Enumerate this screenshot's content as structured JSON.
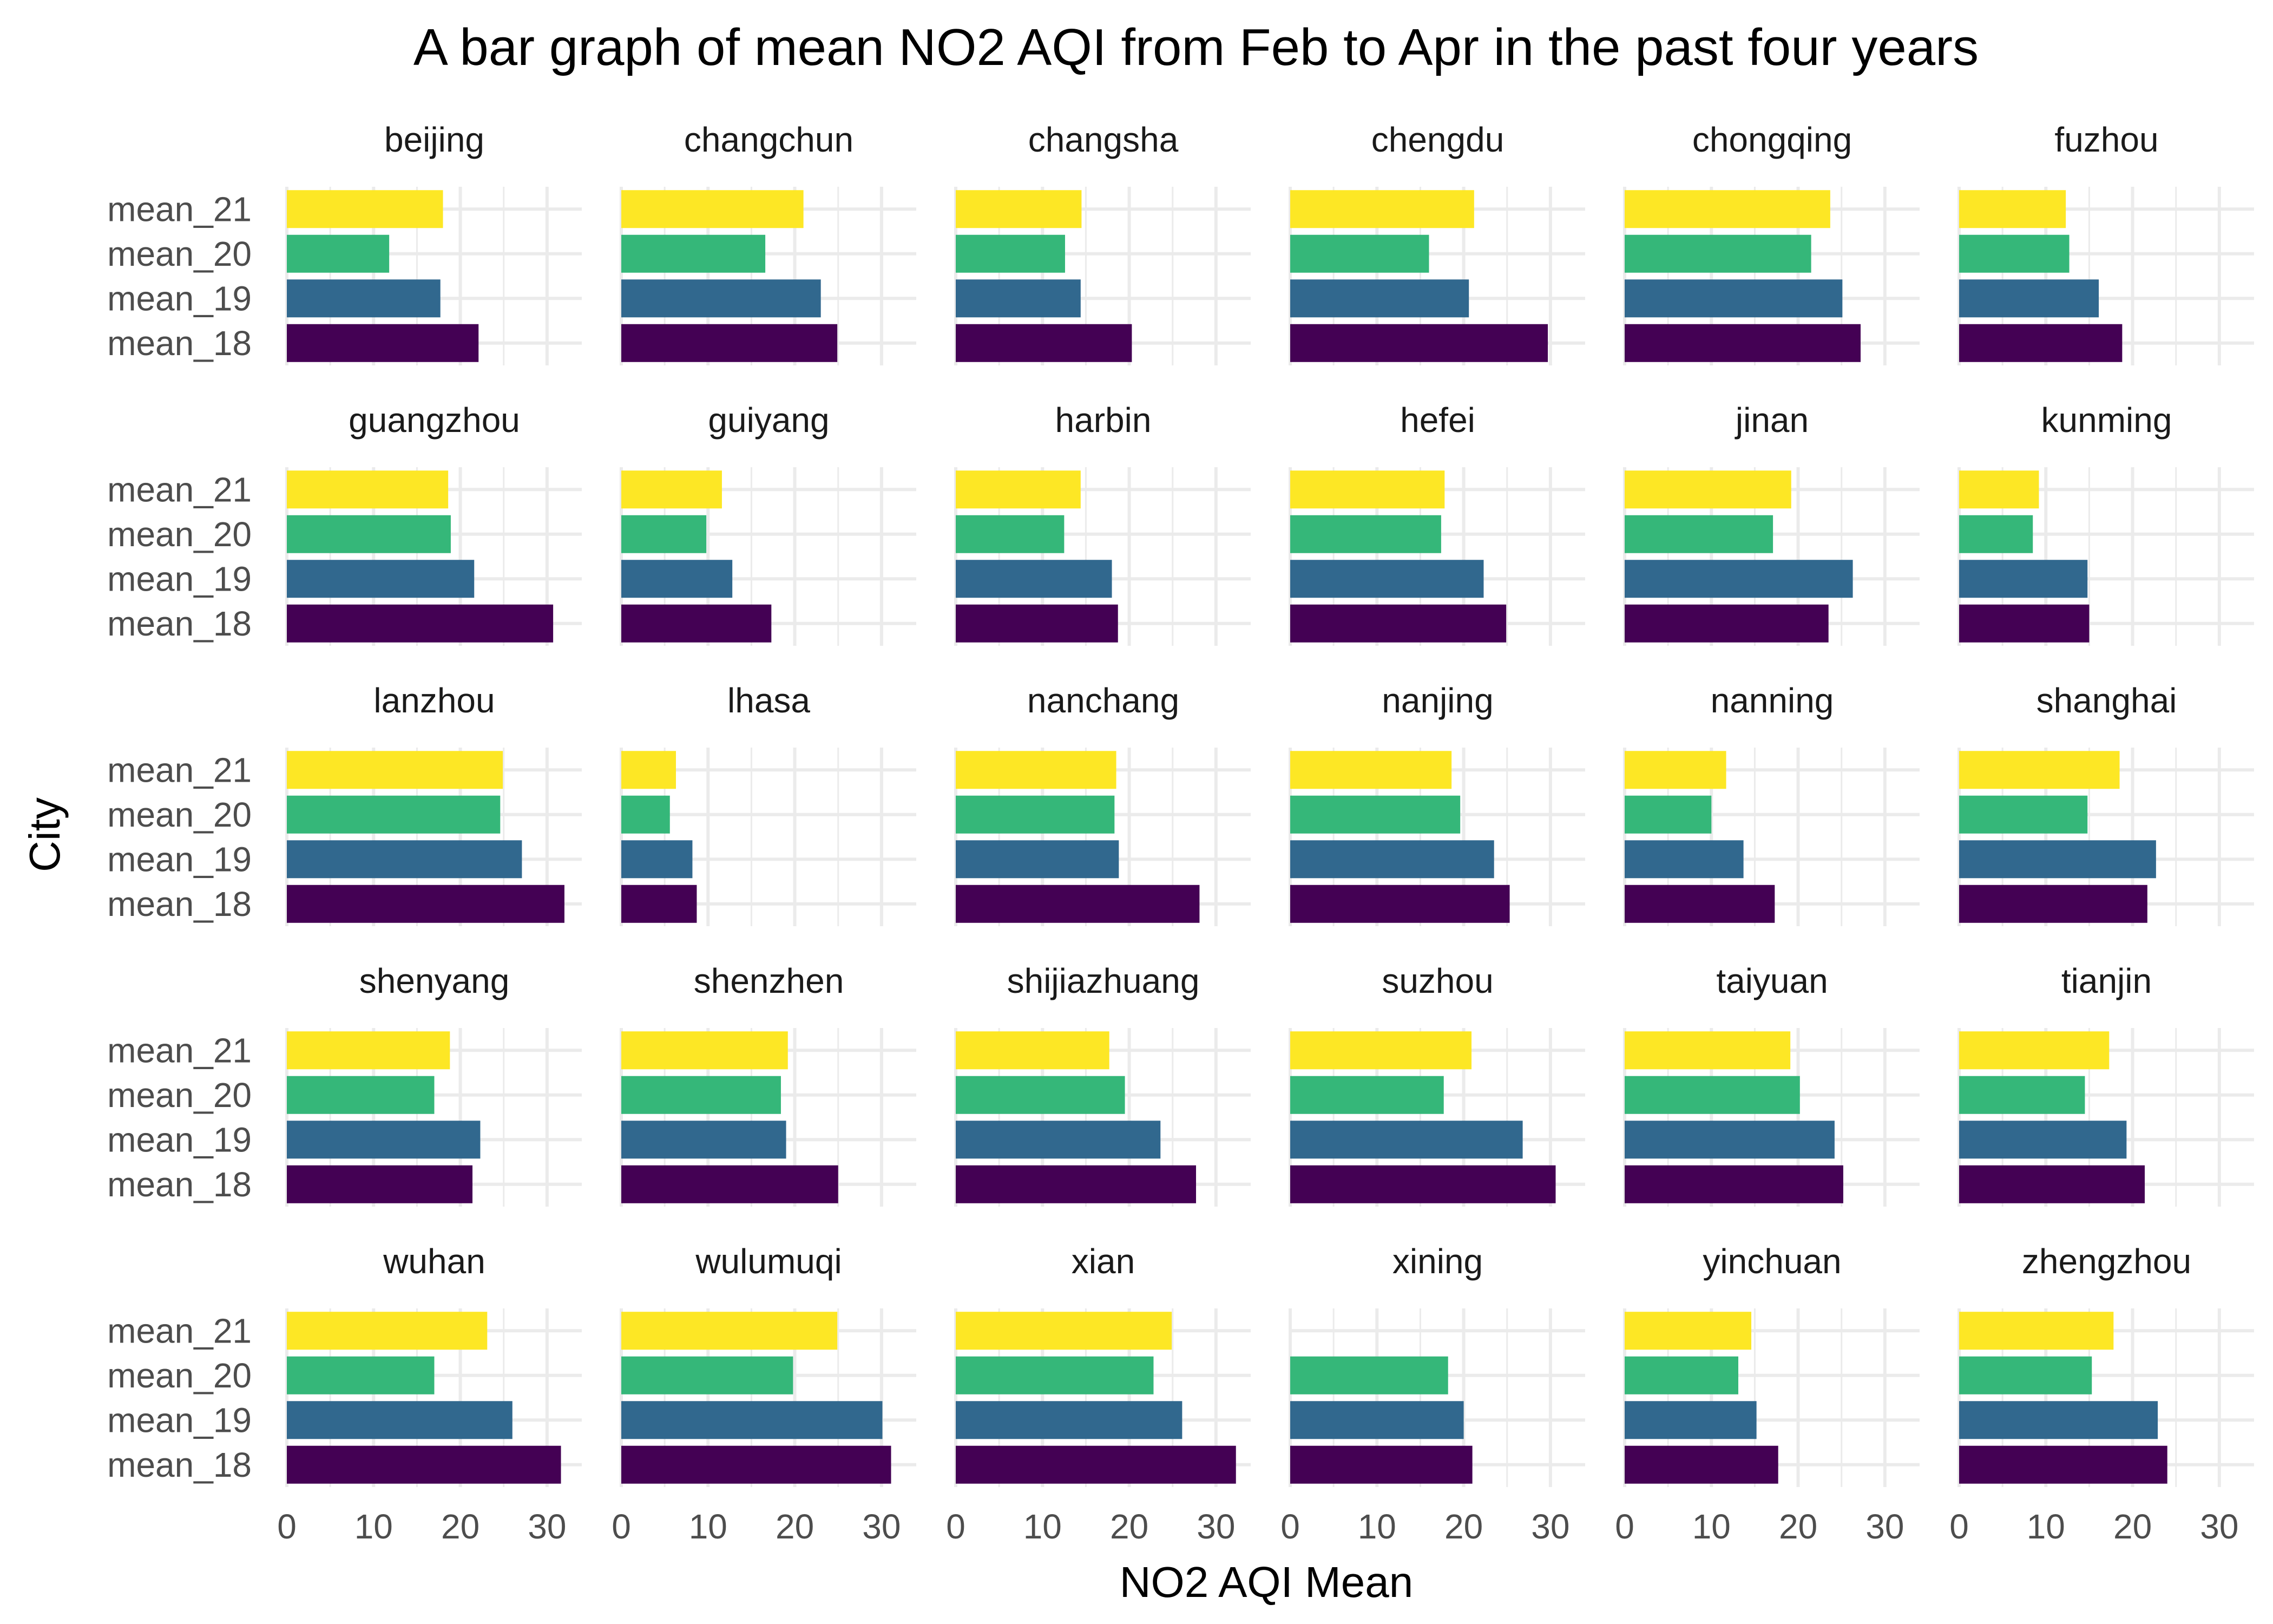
{
  "chart_data": {
    "type": "bar",
    "orientation": "horizontal",
    "faceted": true,
    "facet_columns": 6,
    "title": "A bar graph of mean NO2 AQI from Feb to Apr in the past four years",
    "xlabel": "NO2 AQI Mean",
    "ylabel": "City",
    "xlim": [
      0,
      34
    ],
    "xticks": [
      0,
      10,
      20,
      30
    ],
    "xtick_labels": [
      "0",
      "10",
      "20",
      "30"
    ],
    "categories": [
      "mean_18",
      "mean_19",
      "mean_20",
      "mean_21"
    ],
    "category_colors": {
      "mean_18": "#440154",
      "mean_19": "#31688E",
      "mean_20": "#35B779",
      "mean_21": "#FDE725"
    },
    "grid": true,
    "legend": "none",
    "facets": [
      {
        "name": "beijing",
        "values": {
          "mean_18": 22.1,
          "mean_19": 17.7,
          "mean_20": 11.8,
          "mean_21": 18.0
        }
      },
      {
        "name": "changchun",
        "values": {
          "mean_18": 24.9,
          "mean_19": 23.0,
          "mean_20": 16.6,
          "mean_21": 21.0
        }
      },
      {
        "name": "changsha",
        "values": {
          "mean_18": 20.3,
          "mean_19": 14.4,
          "mean_20": 12.6,
          "mean_21": 14.5
        }
      },
      {
        "name": "chengdu",
        "values": {
          "mean_18": 29.7,
          "mean_19": 20.6,
          "mean_20": 16.0,
          "mean_21": 21.2
        }
      },
      {
        "name": "chongqing",
        "values": {
          "mean_18": 27.2,
          "mean_19": 25.1,
          "mean_20": 21.5,
          "mean_21": 23.7
        }
      },
      {
        "name": "fuzhou",
        "values": {
          "mean_18": 18.8,
          "mean_19": 16.1,
          "mean_20": 12.7,
          "mean_21": 12.3
        }
      },
      {
        "name": "guangzhou",
        "values": {
          "mean_18": 30.7,
          "mean_19": 21.6,
          "mean_20": 18.9,
          "mean_21": 18.6
        }
      },
      {
        "name": "guiyang",
        "values": {
          "mean_18": 17.3,
          "mean_19": 12.8,
          "mean_20": 9.8,
          "mean_21": 11.6
        }
      },
      {
        "name": "harbin",
        "values": {
          "mean_18": 18.7,
          "mean_19": 18.0,
          "mean_20": 12.5,
          "mean_21": 14.4
        }
      },
      {
        "name": "hefei",
        "values": {
          "mean_18": 24.9,
          "mean_19": 22.3,
          "mean_20": 17.4,
          "mean_21": 17.8
        }
      },
      {
        "name": "jinan",
        "values": {
          "mean_18": 23.5,
          "mean_19": 26.3,
          "mean_20": 17.1,
          "mean_21": 19.2
        }
      },
      {
        "name": "kunming",
        "values": {
          "mean_18": 15.0,
          "mean_19": 14.8,
          "mean_20": 8.5,
          "mean_21": 9.2
        }
      },
      {
        "name": "lanzhou",
        "values": {
          "mean_18": 32.0,
          "mean_19": 27.1,
          "mean_20": 24.6,
          "mean_21": 24.9
        }
      },
      {
        "name": "lhasa",
        "values": {
          "mean_18": 8.7,
          "mean_19": 8.2,
          "mean_20": 5.6,
          "mean_21": 6.3
        }
      },
      {
        "name": "nanchang",
        "values": {
          "mean_18": 28.1,
          "mean_19": 18.8,
          "mean_20": 18.3,
          "mean_21": 18.5
        }
      },
      {
        "name": "nanjing",
        "values": {
          "mean_18": 25.3,
          "mean_19": 23.5,
          "mean_20": 19.6,
          "mean_21": 18.6
        }
      },
      {
        "name": "nanning",
        "values": {
          "mean_18": 17.3,
          "mean_19": 13.7,
          "mean_20": 10.0,
          "mean_21": 11.7
        }
      },
      {
        "name": "shanghai",
        "values": {
          "mean_18": 21.7,
          "mean_19": 22.7,
          "mean_20": 14.8,
          "mean_21": 18.5
        }
      },
      {
        "name": "shenyang",
        "values": {
          "mean_18": 21.4,
          "mean_19": 22.3,
          "mean_20": 17.0,
          "mean_21": 18.8
        }
      },
      {
        "name": "shenzhen",
        "values": {
          "mean_18": 25.0,
          "mean_19": 19.0,
          "mean_20": 18.4,
          "mean_21": 19.2
        }
      },
      {
        "name": "shijiazhuang",
        "values": {
          "mean_18": 27.7,
          "mean_19": 23.6,
          "mean_20": 19.5,
          "mean_21": 17.7
        }
      },
      {
        "name": "suzhou",
        "values": {
          "mean_18": 30.6,
          "mean_19": 26.8,
          "mean_20": 17.7,
          "mean_21": 20.9
        }
      },
      {
        "name": "taiyuan",
        "values": {
          "mean_18": 25.2,
          "mean_19": 24.2,
          "mean_20": 20.2,
          "mean_21": 19.1
        }
      },
      {
        "name": "tianjin",
        "values": {
          "mean_18": 21.4,
          "mean_19": 19.3,
          "mean_20": 14.5,
          "mean_21": 17.3
        }
      },
      {
        "name": "wuhan",
        "values": {
          "mean_18": 31.6,
          "mean_19": 26.0,
          "mean_20": 17.0,
          "mean_21": 23.1
        }
      },
      {
        "name": "wulumuqi",
        "values": {
          "mean_18": 31.1,
          "mean_19": 30.1,
          "mean_20": 19.8,
          "mean_21": 24.9
        }
      },
      {
        "name": "xian",
        "values": {
          "mean_18": 32.3,
          "mean_19": 26.1,
          "mean_20": 22.8,
          "mean_21": 24.9
        }
      },
      {
        "name": "xining",
        "values": {
          "mean_18": 21.0,
          "mean_19": 20.0,
          "mean_20": 18.2,
          "mean_21": 0
        }
      },
      {
        "name": "yinchuan",
        "values": {
          "mean_18": 17.7,
          "mean_19": 15.2,
          "mean_20": 13.1,
          "mean_21": 14.6
        }
      },
      {
        "name": "zhengzhou",
        "values": {
          "mean_18": 24.0,
          "mean_19": 22.9,
          "mean_20": 15.3,
          "mean_21": 17.8
        }
      }
    ]
  }
}
